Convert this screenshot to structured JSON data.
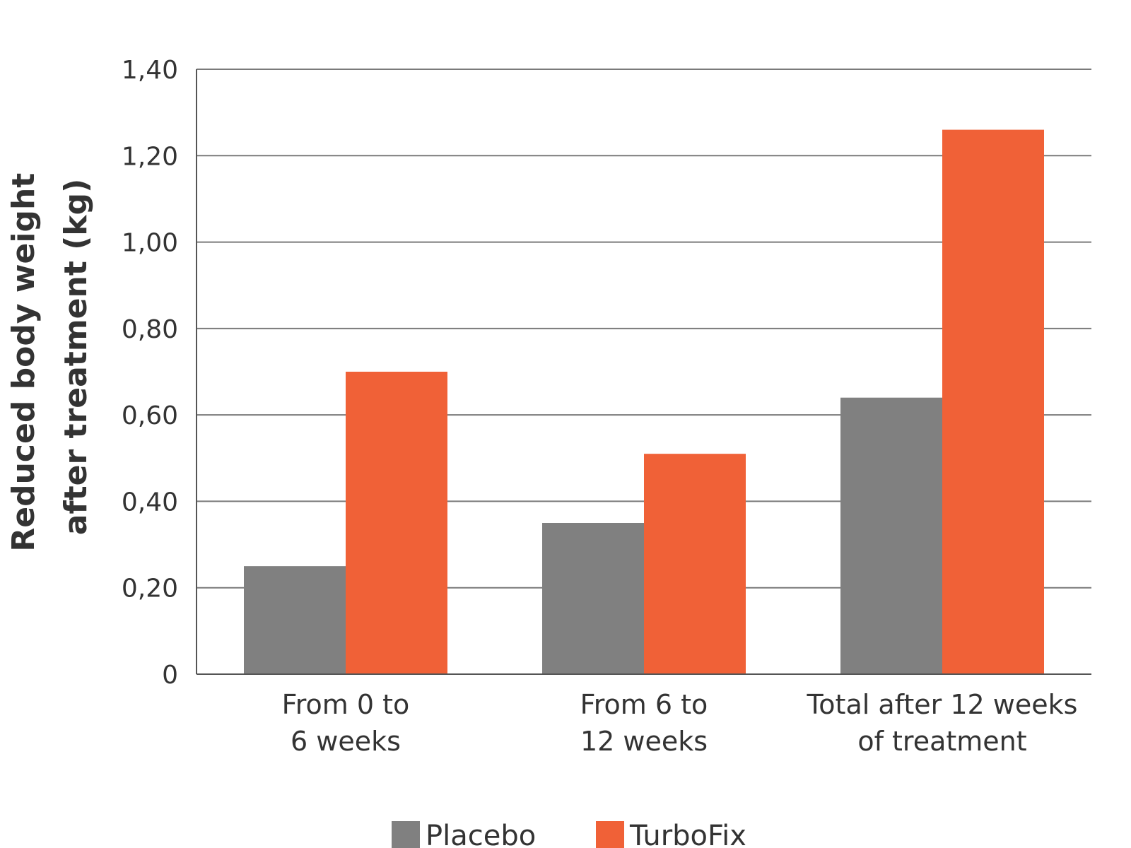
{
  "chart_data": {
    "type": "bar",
    "ylabel": [
      "Reduced body weight",
      "after treatment (kg)"
    ],
    "xlabel": "",
    "ylim": [
      0,
      1.4
    ],
    "yticks": [
      0,
      0.2,
      0.4,
      0.6,
      0.8,
      1.0,
      1.2,
      1.4
    ],
    "ytick_labels": [
      "0",
      "0,20",
      "0,40",
      "0,60",
      "0,80",
      "1,00",
      "1,20",
      "1,40"
    ],
    "categories": [
      [
        "From 0 to",
        "6 weeks"
      ],
      [
        "From 6 to",
        "12 weeks"
      ],
      [
        "Total after 12 weeks",
        "of treatment"
      ]
    ],
    "series": [
      {
        "name": "Placebo",
        "color": "#808080",
        "values": [
          0.25,
          0.35,
          0.64
        ]
      },
      {
        "name": "TurboFix",
        "color": "#f06137",
        "values": [
          0.7,
          0.51,
          1.26
        ]
      }
    ],
    "grid": true,
    "legend_position": "bottom-center"
  }
}
